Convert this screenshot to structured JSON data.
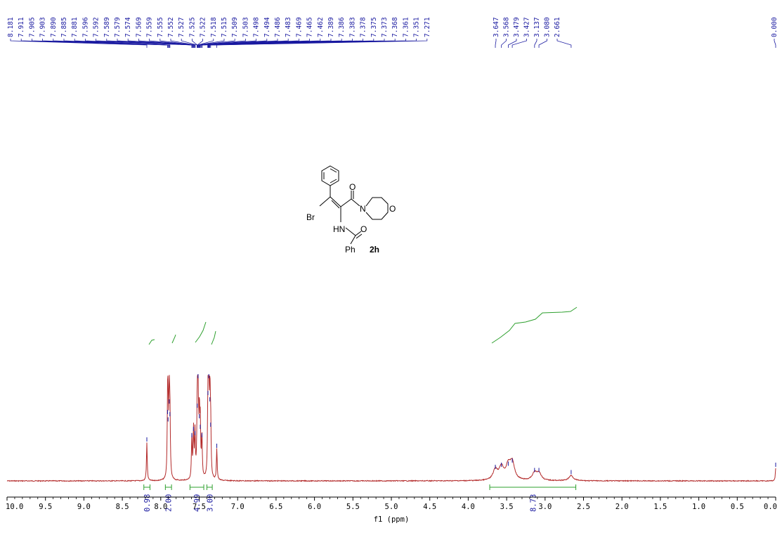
{
  "chart_data": {
    "type": "line",
    "title": "",
    "xlabel": "f1 (ppm)",
    "ylabel": "",
    "xlim": [
      10.0,
      0.0
    ],
    "x_reversed": true,
    "x_ticks": [
      "10.0",
      "9.5",
      "9.0",
      "8.5",
      "8.0",
      "7.5",
      "7.0",
      "6.5",
      "6.0",
      "5.5",
      "5.0",
      "4.5",
      "4.0",
      "3.5",
      "3.0",
      "2.5",
      "2.0",
      "1.5",
      "1.0",
      "0.5",
      "0.0"
    ],
    "grid": false,
    "colors": {
      "spectrum": "#b32a2a",
      "integral": "#2ea02e",
      "labels": "#1a1aa0",
      "axis": "#000000"
    },
    "peak_labels": [
      "8.181",
      "7.911",
      "7.905",
      "7.903",
      "7.890",
      "7.885",
      "7.881",
      "7.596",
      "7.592",
      "7.589",
      "7.579",
      "7.574",
      "7.569",
      "7.559",
      "7.555",
      "7.552",
      "7.527",
      "7.525",
      "7.522",
      "7.518",
      "7.515",
      "7.509",
      "7.503",
      "7.498",
      "7.494",
      "7.486",
      "7.483",
      "7.469",
      "7.465",
      "7.462",
      "7.389",
      "7.386",
      "7.383",
      "7.378",
      "7.375",
      "7.373",
      "7.368",
      "7.361",
      "7.351",
      "7.271",
      "3.647",
      "3.568",
      "3.479",
      "3.427",
      "3.137",
      "3.080",
      "2.661",
      "0.000"
    ],
    "peaks": [
      {
        "ppm": 8.181,
        "height": 0.36
      },
      {
        "ppm": 7.911,
        "height": 0.62
      },
      {
        "ppm": 7.905,
        "height": 0.55
      },
      {
        "ppm": 7.89,
        "height": 0.72
      },
      {
        "ppm": 7.881,
        "height": 0.6
      },
      {
        "ppm": 7.596,
        "height": 0.4
      },
      {
        "ppm": 7.574,
        "height": 0.46
      },
      {
        "ppm": 7.555,
        "height": 0.42
      },
      {
        "ppm": 7.525,
        "height": 0.68
      },
      {
        "ppm": 7.515,
        "height": 0.96
      },
      {
        "ppm": 7.498,
        "height": 0.58
      },
      {
        "ppm": 7.486,
        "height": 0.48
      },
      {
        "ppm": 7.465,
        "height": 0.4
      },
      {
        "ppm": 7.386,
        "height": 0.8
      },
      {
        "ppm": 7.375,
        "height": 0.96
      },
      {
        "ppm": 7.361,
        "height": 0.74
      },
      {
        "ppm": 7.351,
        "height": 0.5
      },
      {
        "ppm": 7.271,
        "height": 0.3
      },
      {
        "ppm": 3.647,
        "height": 0.1
      },
      {
        "ppm": 3.568,
        "height": 0.12
      },
      {
        "ppm": 3.479,
        "height": 0.13
      },
      {
        "ppm": 3.427,
        "height": 0.16
      },
      {
        "ppm": 3.137,
        "height": 0.07
      },
      {
        "ppm": 3.08,
        "height": 0.07
      },
      {
        "ppm": 2.661,
        "height": 0.05
      },
      {
        "ppm": 0.0,
        "height": 0.12
      }
    ],
    "integrals": [
      {
        "from": 8.22,
        "to": 8.14,
        "value": "0.98"
      },
      {
        "from": 7.94,
        "to": 7.86,
        "value": "2.00"
      },
      {
        "from": 7.62,
        "to": 7.44,
        "value": "4.99"
      },
      {
        "from": 7.4,
        "to": 7.33,
        "value": "3.00"
      },
      {
        "from": 3.72,
        "to": 2.6,
        "value": "8.73"
      }
    ],
    "molecule": {
      "compound_label": "2h",
      "atoms": [
        "O",
        "N",
        "O",
        "Br",
        "HN",
        "O",
        "Ph"
      ]
    }
  }
}
